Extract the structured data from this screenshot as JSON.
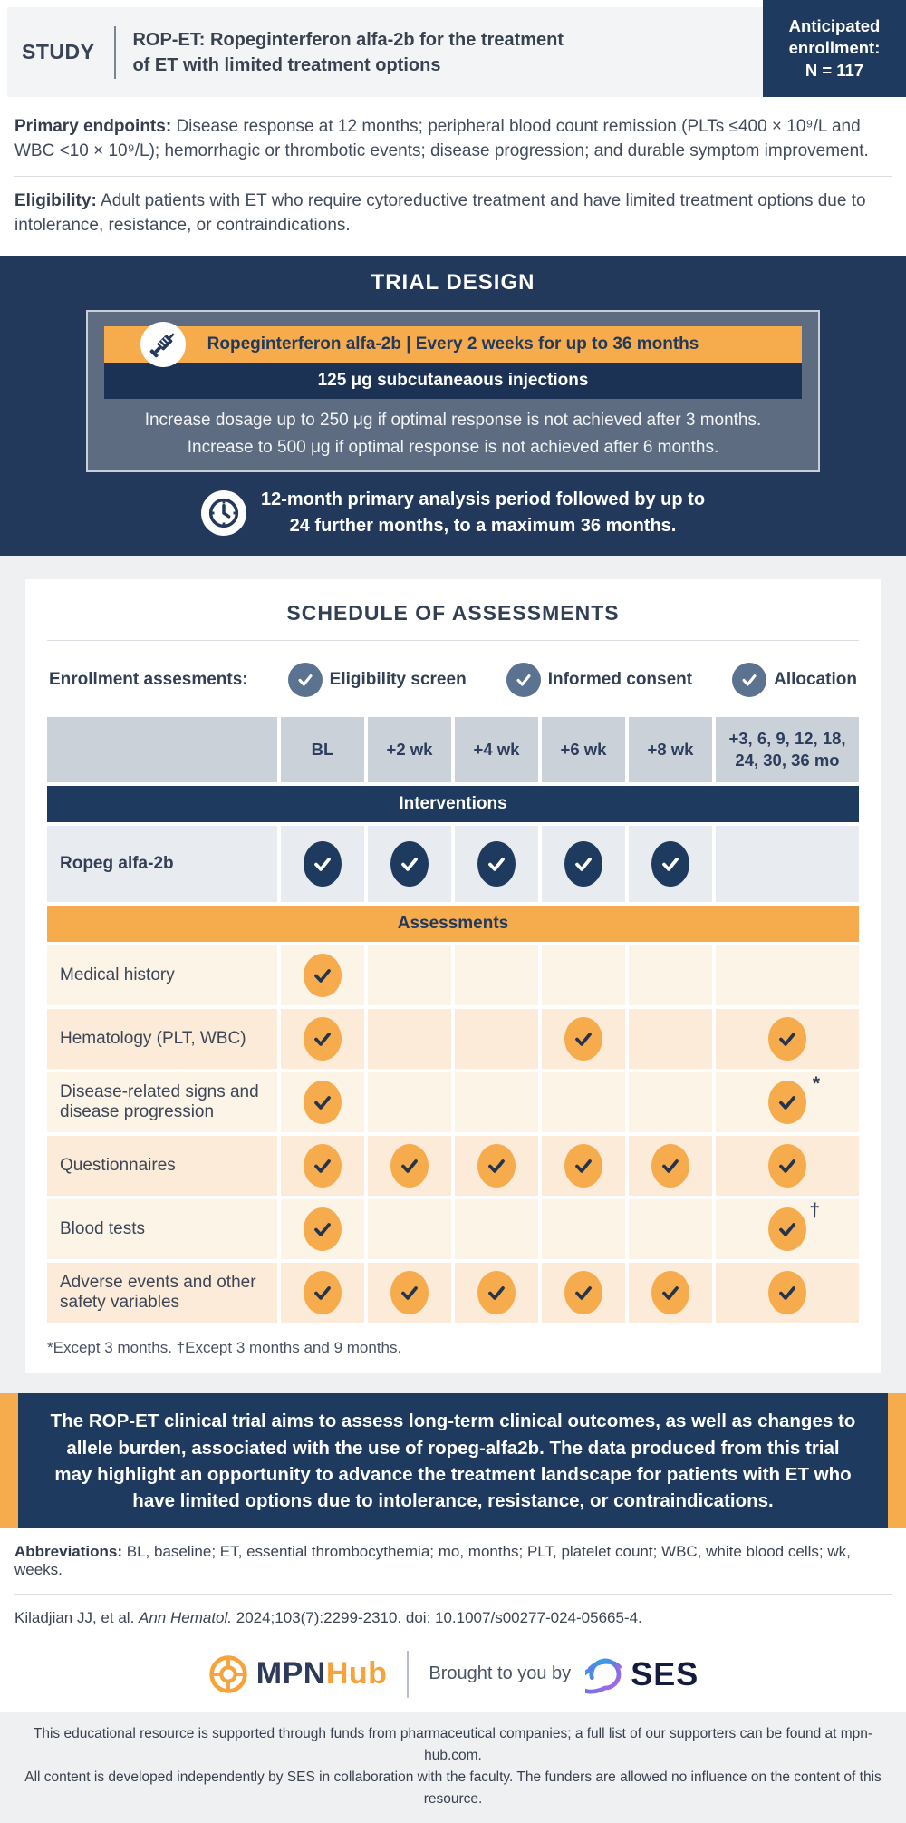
{
  "colors": {
    "navy": "#1E3A5E",
    "orange": "#F6AC4D",
    "slate_box": "#5D6C81",
    "slate_check": "#5B7290"
  },
  "header": {
    "kicker": "STUDY",
    "title_line1": "ROP-ET: Ropeginterferon alfa-2b for the treatment",
    "title_line2": "of ET with limited treatment options",
    "enrollment_line1": "Anticipated",
    "enrollment_line2": "enrollment:",
    "enrollment_line3": "N = 117"
  },
  "summary": {
    "endpoints_label": "Primary endpoints:",
    "endpoints_text": "Disease response at 12 months; peripheral blood count remission (PLTs ≤400 × 10⁹/L and WBC <10 × 10⁹/L); hemorrhagic or thrombotic events; disease progression; and durable symptom improvement.",
    "eligibility_label": "Eligibility:",
    "eligibility_text": "Adult patients with ET who require cytoreductive treatment and have limited treatment options due to intolerance, resistance, or contraindications."
  },
  "trial_design": {
    "title": "TRIAL DESIGN",
    "drug_bar": "Ropeginterferon alfa-2b  |  Every 2 weeks for up to 36 months",
    "dose_bar": "125 μg subcutaneaous injections",
    "escalation_line1": "Increase dosage up to 250 μg if optimal response is not achieved after 3 months.",
    "escalation_line2": "Increase to 500 μg if optimal response is not achieved after 6 months.",
    "analysis_line1": "12-month primary analysis period followed by up to",
    "analysis_line2": "24 further months, to a maximum 36 months."
  },
  "schedule": {
    "title": "SCHEDULE OF ASSESSMENTS",
    "enrollment_label": "Enrollment assesments:",
    "enrollment_items": [
      "Eligibility screen",
      "Informed consent",
      "Allocation"
    ],
    "columns": [
      "BL",
      "+2 wk",
      "+4 wk",
      "+6 wk",
      "+8 wk",
      "+3, 6, 9, 12, 18, 24, 30, 36 mo"
    ],
    "interventions_header": "Interventions",
    "intervention_rows": [
      {
        "label": "Ropeg alfa-2b",
        "checks": [
          1,
          1,
          1,
          1,
          1,
          0
        ]
      }
    ],
    "assessments_header": "Assessments",
    "assessment_rows": [
      {
        "label": "Medical history",
        "checks": [
          1,
          0,
          0,
          0,
          0,
          0
        ],
        "last_sup": ""
      },
      {
        "label": "Hematology (PLT, WBC)",
        "checks": [
          1,
          0,
          0,
          1,
          0,
          1
        ],
        "last_sup": ""
      },
      {
        "label": "Disease-related signs and disease progression",
        "checks": [
          1,
          0,
          0,
          0,
          0,
          1
        ],
        "last_sup": "*"
      },
      {
        "label": "Questionnaires",
        "checks": [
          1,
          1,
          1,
          1,
          1,
          1
        ],
        "last_sup": ""
      },
      {
        "label": "Blood tests",
        "checks": [
          1,
          0,
          0,
          0,
          0,
          1
        ],
        "last_sup": "†"
      },
      {
        "label": "Adverse events and other safety variables",
        "checks": [
          1,
          1,
          1,
          1,
          1,
          1
        ],
        "last_sup": ""
      }
    ],
    "footnote": "*Except 3 months. †Except 3 months and 9 months."
  },
  "callout": "The ROP-ET clinical trial aims to assess long-term clinical outcomes, as well as changes to allele burden, associated with the use of ropeg-alfa2b. The data produced from this trial may highlight an opportunity to advance the treatment landscape for patients with ET who have limited options due to intolerance, resistance, or contraindications.",
  "abbreviations": {
    "label": "Abbreviations:",
    "text": "BL, baseline; ET, essential thrombocythemia; mo, months; PLT, platelet count; WBC, white blood cells; wk, weeks."
  },
  "reference": {
    "pre": "Kiladjian JJ, et al. ",
    "italic": "Ann Hematol.",
    "post": " 2024;103(7):2299-2310. doi: 10.1007/s00277-024-05665-4."
  },
  "branding": {
    "mpn": "MPN",
    "hub": "Hub",
    "brought": "Brought to you by",
    "ses": "SES"
  },
  "footer": {
    "line1": "This educational resource is supported through funds from pharmaceutical companies; a full list of our supporters can be found at mpn-hub.com.",
    "line2": "All content is developed independently by SES in collaboration with the faculty. The funders are allowed no influence on the content of this resource."
  }
}
